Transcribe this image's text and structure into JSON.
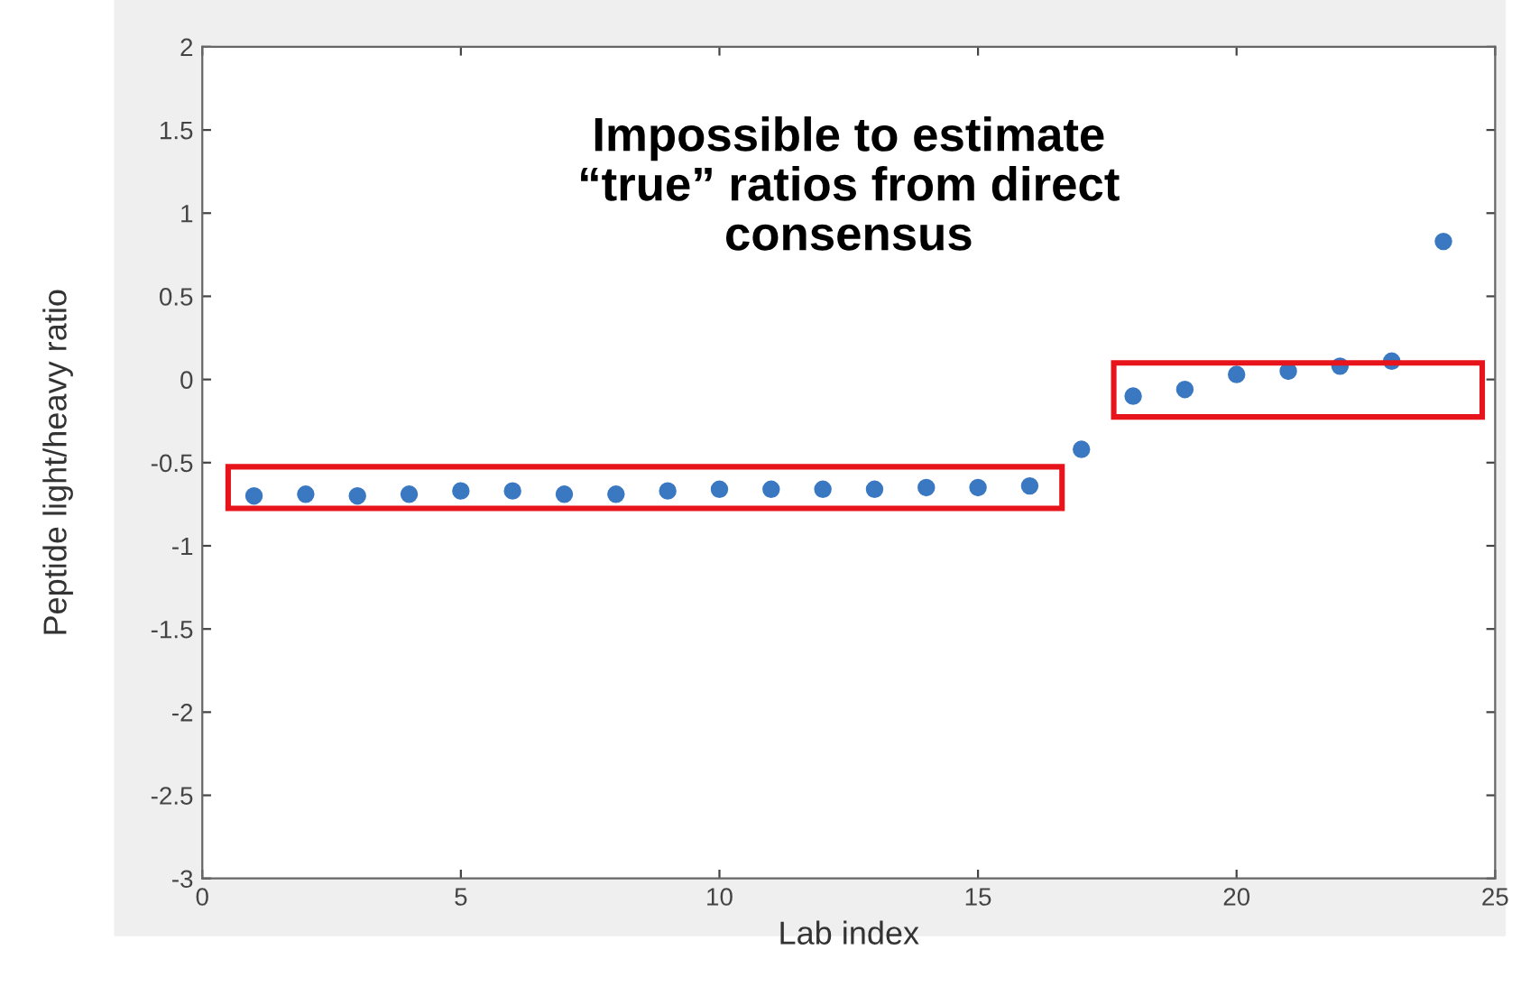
{
  "chart_data": {
    "type": "scatter",
    "xlabel": "Lab index",
    "ylabel": "Peptide light/heavy ratio",
    "annotations": [
      "Impossible to estimate\n“true” ratios from direct\nconsensus"
    ],
    "x": [
      1,
      2,
      3,
      4,
      5,
      6,
      7,
      8,
      9,
      10,
      11,
      12,
      13,
      14,
      15,
      16,
      17,
      18,
      19,
      20,
      21,
      22,
      23,
      24
    ],
    "series": [
      {
        "color": "#3a78c2",
        "values": [
          -0.7,
          -0.69,
          -0.7,
          -0.69,
          -0.67,
          -0.67,
          -0.69,
          -0.69,
          -0.67,
          -0.66,
          -0.66,
          -0.66,
          -0.66,
          -0.65,
          -0.65,
          -0.64,
          -0.42,
          -0.1,
          -0.06,
          0.03,
          0.05,
          0.08,
          0.11,
          0.83
        ]
      }
    ],
    "xlim": [
      0,
      25
    ],
    "xticks": [
      0,
      5,
      10,
      15,
      20,
      25
    ],
    "ylim": [
      -3,
      2
    ],
    "yticks": [
      -3,
      -2.5,
      -2,
      -1.5,
      -1,
      -0.5,
      0,
      0.5,
      1,
      1.5,
      2
    ],
    "marker": "circle",
    "grid": false,
    "legend": false
  }
}
